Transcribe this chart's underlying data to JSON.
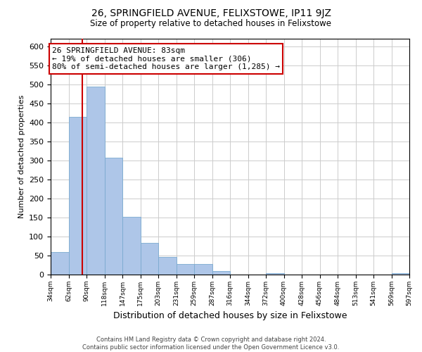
{
  "title": "26, SPRINGFIELD AVENUE, FELIXSTOWE, IP11 9JZ",
  "subtitle": "Size of property relative to detached houses in Felixstowe",
  "xlabel": "Distribution of detached houses by size in Felixstowe",
  "ylabel": "Number of detached properties",
  "bar_heights": [
    60,
    415,
    495,
    308,
    152,
    83,
    46,
    27,
    27,
    10,
    0,
    0,
    4,
    0,
    0,
    0,
    0,
    0,
    0,
    3
  ],
  "bin_labels": [
    "34sqm",
    "62sqm",
    "90sqm",
    "118sqm",
    "147sqm",
    "175sqm",
    "203sqm",
    "231sqm",
    "259sqm",
    "287sqm",
    "316sqm",
    "344sqm",
    "372sqm",
    "400sqm",
    "428sqm",
    "456sqm",
    "484sqm",
    "513sqm",
    "541sqm",
    "569sqm",
    "597sqm"
  ],
  "bar_color": "#aec6e8",
  "bar_edge_color": "#7aaad0",
  "property_line_color": "#cc0000",
  "annotation_line1": "26 SPRINGFIELD AVENUE: 83sqm",
  "annotation_line2": "← 19% of detached houses are smaller (306)",
  "annotation_line3": "80% of semi-detached houses are larger (1,285) →",
  "annotation_box_color": "#ffffff",
  "annotation_box_edge": "#cc0000",
  "ylim": [
    0,
    620
  ],
  "yticks": [
    0,
    50,
    100,
    150,
    200,
    250,
    300,
    350,
    400,
    450,
    500,
    550,
    600
  ],
  "footer_line1": "Contains HM Land Registry data © Crown copyright and database right 2024.",
  "footer_line2": "Contains public sector information licensed under the Open Government Licence v3.0.",
  "background_color": "#ffffff",
  "grid_color": "#cccccc",
  "title_fontsize": 10,
  "subtitle_fontsize": 8.5,
  "annotation_fontsize": 8,
  "ylabel_fontsize": 8,
  "xlabel_fontsize": 9
}
